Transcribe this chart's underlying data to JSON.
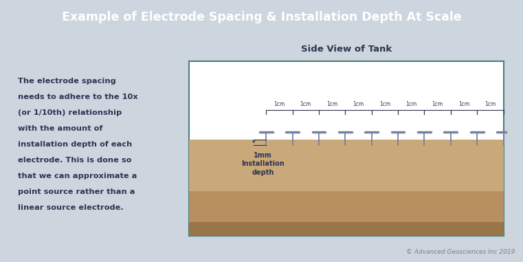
{
  "title": "Example of Electrode Spacing & Installation Depth At Scale",
  "title_bg_color": "#4d5468",
  "title_text_color": "#ffffff",
  "fig_bg_color": "#cdd5de",
  "panel_bg_color": "#ffffff",
  "tank_subtitle": "Side View of Tank",
  "tank_subtitle_color": "#2d3550",
  "left_text_lines": [
    "The electrode spacing",
    "needs to adhere to the 10x",
    "(or 1/10th) relationship",
    "with the amount of",
    "installation depth of each",
    "electrode. This is done so",
    "that we can approximate a",
    "point source rather than a",
    "linear source electrode."
  ],
  "left_text_color": "#2d3550",
  "soil_top_color": "#c9a87a",
  "soil_mid_color": "#b89060",
  "soil_bot_color": "#9a7548",
  "tank_border_color": "#4a8080",
  "electrode_color": "#7880a0",
  "annotation_color": "#2d3550",
  "spacing_label": "1cm",
  "depth_label_lines": [
    "1mm",
    "Installation",
    "depth"
  ],
  "n_electrodes": 10,
  "copyright": "© Advanced Geosciences Inc 2019"
}
